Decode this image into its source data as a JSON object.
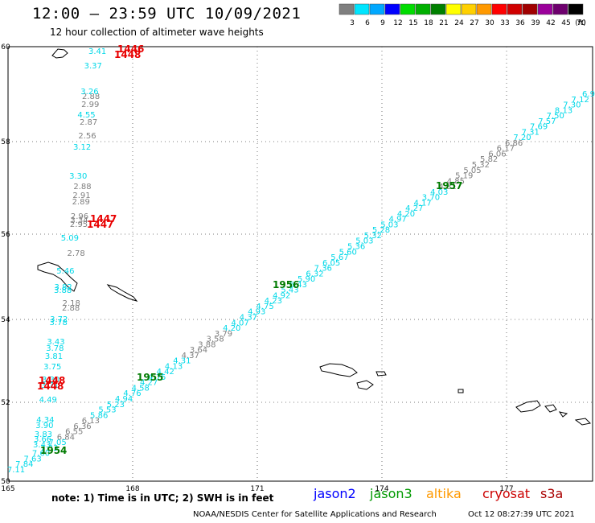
{
  "header": {
    "title": "12:00 – 23:59 UTC 10/09/2021",
    "subtitle": "12 hour collection of altimeter wave heights"
  },
  "legend": {
    "unit": "(ft)",
    "bins": [
      {
        "label": "3",
        "color": "#7f7f7f"
      },
      {
        "label": "6",
        "color": "#00e5ff"
      },
      {
        "label": "9",
        "color": "#00a8ff"
      },
      {
        "label": "12",
        "color": "#0000ff"
      },
      {
        "label": "15",
        "color": "#00dd00"
      },
      {
        "label": "18",
        "color": "#00b000"
      },
      {
        "label": "21",
        "color": "#008000"
      },
      {
        "label": "24",
        "color": "#ffff00"
      },
      {
        "label": "27",
        "color": "#ffd000"
      },
      {
        "label": "30",
        "color": "#ff9900"
      },
      {
        "label": "33",
        "color": "#ff0000"
      },
      {
        "label": "36",
        "color": "#d00000"
      },
      {
        "label": "39",
        "color": "#a00000"
      },
      {
        "label": "42",
        "color": "#9b009b"
      },
      {
        "label": "45",
        "color": "#6e006e"
      },
      {
        "label": "70",
        "color": "#000000"
      }
    ]
  },
  "axes": {
    "x_ticks": [
      "165",
      "168",
      "171",
      "174",
      "177"
    ],
    "y_ticks": [
      "60",
      "58",
      "56",
      "54",
      "52",
      "50"
    ]
  },
  "track_colors": {
    "grey": "#7f7f7f",
    "cyan": "#00d8e8",
    "green": "#007a00",
    "red": "#e80000"
  },
  "tracks": {
    "jason3_values": [
      "7.11",
      "7.84",
      "7.63",
      "7.60",
      "7.33",
      "7.05",
      "6.84",
      "6.55",
      "6.36",
      "6.13",
      "5.86",
      "5.53",
      "5.23",
      "4.94",
      "4.76",
      "4.58",
      "4.27",
      "4.75",
      "4.42",
      "4.13",
      "4.31",
      "4.37",
      "3.64",
      "3.88",
      "3.58",
      "3.79",
      "4.20",
      "4.07",
      "4.37",
      "4.93",
      "4.75",
      "4.23",
      "4.92",
      "5.43",
      "6.43",
      "5.90",
      "6.32",
      "7.36",
      "6.05",
      "5.67",
      "5.60",
      "5.36",
      "5.03",
      "5.32",
      "5.28",
      "5.03",
      "4.97",
      "4.20",
      "4.27",
      "4.17",
      "3.70",
      "4.03",
      "4.31",
      "4.85",
      "5.19",
      "5.05",
      "5.32",
      "5.82",
      "6.06",
      "6.17",
      "6.86",
      "7.20",
      "7.31",
      "7.69",
      "7.57",
      "7.50",
      "8.13",
      "7.30",
      "7.12",
      "6.9"
    ],
    "west_grey": [
      "2.88",
      "2.99",
      "2.87",
      "2.56",
      "2.88",
      "2.91",
      "2.89",
      "2.96",
      "2.95",
      "2.78",
      "2.18",
      "2.88",
      "3.34"
    ],
    "west_cyan": [
      "3.37",
      "3.26",
      "4.55",
      "3.12",
      "3.30",
      "5.09",
      "5.46",
      "3.82",
      "3.88",
      "3.72",
      "3.78",
      "3.43",
      "3.78",
      "3.81",
      "3.75",
      "3.30",
      "3.71",
      "4.49",
      "4.34",
      "3.90",
      "3.83",
      "3.66",
      "3.43",
      "3.41"
    ],
    "time_labels": [
      "1954",
      "1955",
      "1956",
      "1957"
    ],
    "cryosat_labels": [
      "1446",
      "1448",
      "1447",
      "1447",
      "1448",
      "1448"
    ]
  },
  "footer": {
    "note": "note: 1) Time is in UTC; 2) SWH is in feet",
    "missions": [
      {
        "name": "jason2",
        "color": "#0000ff"
      },
      {
        "name": "jason3",
        "color": "#009900"
      },
      {
        "name": "altika",
        "color": "#ff9900"
      },
      {
        "name": "cryosat",
        "color": "#cc0000"
      },
      {
        "name": "s3a",
        "color": "#aa0000"
      }
    ],
    "credit": "NOAA/NESDIS Center for Satellite Applications and Research",
    "timestamp": "Oct 12 08:27:39 UTC 2021"
  }
}
